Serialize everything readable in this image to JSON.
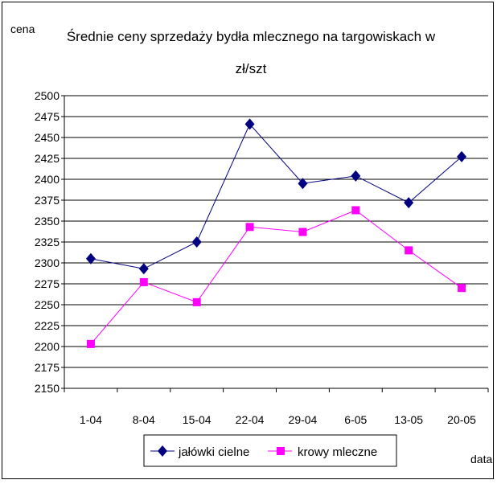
{
  "chart_data": {
    "type": "line",
    "title_lines": [
      "Średnie ceny sprzedaży bydła mlecznego na targowiskach w",
      "zł/szt"
    ],
    "ylabel": "cena",
    "xlabel": "data",
    "categories": [
      "1-04",
      "8-04",
      "15-04",
      "22-04",
      "29-04",
      "6-05",
      "13-05",
      "20-05"
    ],
    "ylim": [
      2150,
      2500
    ],
    "ytick_step": 25,
    "yticks": [
      "2150",
      "2175",
      "2200",
      "2225",
      "2250",
      "2275",
      "2300",
      "2325",
      "2350",
      "2375",
      "2400",
      "2425",
      "2450",
      "2475",
      "2500"
    ],
    "grid": true,
    "legend_position": "bottom",
    "series": [
      {
        "name": "jałówki cielne",
        "color": "#000080",
        "marker": "diamond",
        "values": [
          2305,
          2293,
          2325,
          2466,
          2395,
          2404,
          2372,
          2427
        ]
      },
      {
        "name": "krowy mleczne",
        "color": "#FF00FF",
        "marker": "square",
        "values": [
          2203,
          2277,
          2253,
          2343,
          2337,
          2363,
          2315,
          2270
        ]
      }
    ]
  }
}
